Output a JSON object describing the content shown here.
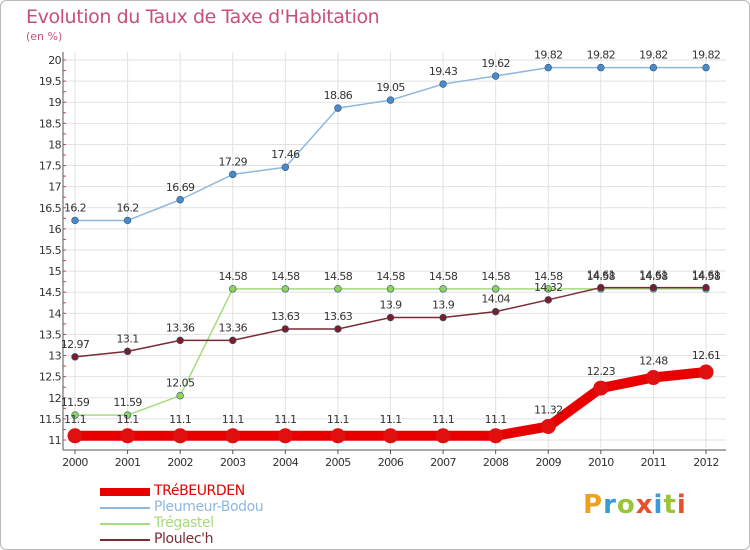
{
  "header": {
    "title": "Evolution du Taux de Taxe d'Habitation",
    "unit": "(en %)"
  },
  "logo": {
    "text": "Proxiti",
    "colors": [
      "#f0a020",
      "#3a9bd8",
      "#9ac43a",
      "#e8502a",
      "#3a9bd8",
      "#9ac43a",
      "#e8502a"
    ]
  },
  "chart_data": {
    "type": "line",
    "x": [
      2000,
      2001,
      2002,
      2003,
      2004,
      2005,
      2006,
      2007,
      2008,
      2009,
      2010,
      2011,
      2012
    ],
    "y_ticks": [
      "11",
      "11.5",
      "12",
      "12.5",
      "13",
      "13.5",
      "14",
      "14.5",
      "15",
      "15.5",
      "16",
      "16.5",
      "17",
      "17.5",
      "18",
      "18.5",
      "19",
      "19.5",
      "20"
    ],
    "ylim": [
      11,
      20
    ],
    "grid": true,
    "legend_position": "bottom-left",
    "series": [
      {
        "name": "Pleumeur-Bodou",
        "color": "#4a8ac9",
        "line_color": "#8eb8de",
        "values": [
          16.2,
          16.2,
          16.69,
          17.29,
          17.46,
          18.86,
          19.05,
          19.43,
          19.62,
          19.82,
          19.82,
          19.82,
          19.82
        ],
        "labels": [
          "16.2",
          "16.2",
          "16.69",
          "17.29",
          "17.46",
          "18.86",
          "19.05",
          "19.43",
          "19.62",
          "19.82",
          "19.82",
          "19.82",
          "19.82"
        ]
      },
      {
        "name": "Trégastel",
        "color": "#8fd45a",
        "line_color": "#a5db7d",
        "values": [
          11.59,
          11.59,
          12.05,
          14.58,
          14.58,
          14.58,
          14.58,
          14.58,
          14.58,
          14.58,
          14.58,
          14.58,
          14.58
        ],
        "labels": [
          "11.59",
          "11.59",
          "12.05",
          "14.58",
          "14.58",
          "14.58",
          "14.58",
          "14.58",
          "14.58",
          "14.58",
          "14.58",
          "14.58",
          "14.58"
        ]
      },
      {
        "name": "Ploulec'h",
        "color": "#7a1f2a",
        "line_color": "#7a2a33",
        "values": [
          12.97,
          13.1,
          13.36,
          13.36,
          13.63,
          13.63,
          13.9,
          13.9,
          14.04,
          14.32,
          14.61,
          14.61,
          14.61
        ],
        "labels": [
          "12.97",
          "13.1",
          "13.36",
          "13.36",
          "13.63",
          "13.63",
          "13.9",
          "13.9",
          "14.04",
          "14.32",
          "14.61",
          "14.61",
          "14.61"
        ]
      },
      {
        "name": "TRéBEURDEN",
        "color": "#e01010",
        "line_color": "#e80000",
        "emphasis": true,
        "values": [
          11.1,
          11.1,
          11.1,
          11.1,
          11.1,
          11.1,
          11.1,
          11.1,
          11.1,
          11.32,
          12.23,
          12.48,
          12.61
        ],
        "labels": [
          "11.1",
          "11.1",
          "11.1",
          "11.1",
          "11.1",
          "11.1",
          "11.1",
          "11.1",
          "11.1",
          "11.32",
          "12.23",
          "12.48",
          "12.61"
        ]
      }
    ],
    "legend_order": [
      "TRéBEURDEN",
      "Pleumeur-Bodou",
      "Trégastel",
      "Ploulec'h"
    ]
  }
}
